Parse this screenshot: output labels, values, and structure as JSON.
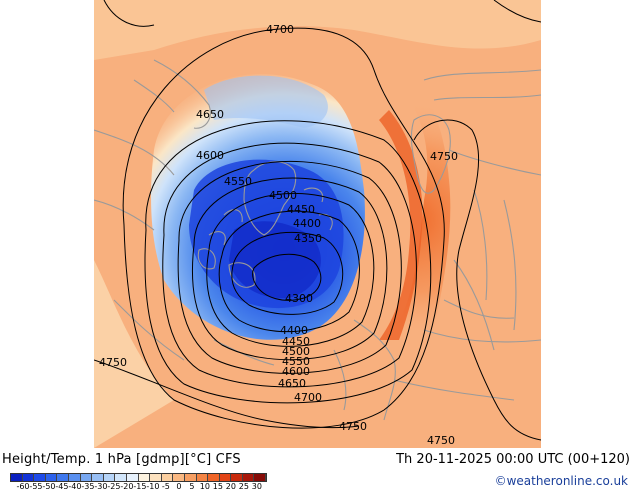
{
  "map": {
    "title": "Height/Temp. 1 hPa [gdmp][°C] CFS",
    "valid_time": "Th 20-11-2025 00:00 UTC (00+120)",
    "credit": "©weatheronline.co.uk",
    "contour_labels": [
      "4700",
      "4650",
      "4600",
      "4550",
      "4500",
      "4450",
      "4400",
      "4350",
      "4300",
      "4400",
      "4450",
      "4500",
      "4550",
      "4600",
      "4650",
      "4700",
      "4750",
      "4750",
      "4750",
      "4750"
    ],
    "contour_values_gdm": [
      4300,
      4350,
      4400,
      4450,
      4500,
      4550,
      4600,
      4650,
      4700,
      4750
    ],
    "colorbar": {
      "labels": [
        "-60",
        "-55",
        "-50",
        "-45",
        "-40",
        "-35",
        "-30",
        "-25",
        "-20",
        "-15",
        "-10",
        "-5",
        "0",
        "5",
        "10",
        "15",
        "20",
        "25",
        "30"
      ],
      "colors": [
        "#0a1fbf",
        "#1233d8",
        "#1e4ae8",
        "#2d62ec",
        "#3f78ee",
        "#5a90f0",
        "#78a8f2",
        "#98bff5",
        "#b6d4f8",
        "#d2e6fb",
        "#e8f2fd",
        "#fdf3e0",
        "#fde2bf",
        "#fbcfa0",
        "#f9b882",
        "#f79f63",
        "#f48444",
        "#f06528",
        "#e24416",
        "#c82a0c",
        "#a8170a",
        "#860c08"
      ]
    },
    "colors": {
      "land_outline": "#9a9a9a",
      "contour": "#000000",
      "credit": "#1a3f9a"
    }
  }
}
